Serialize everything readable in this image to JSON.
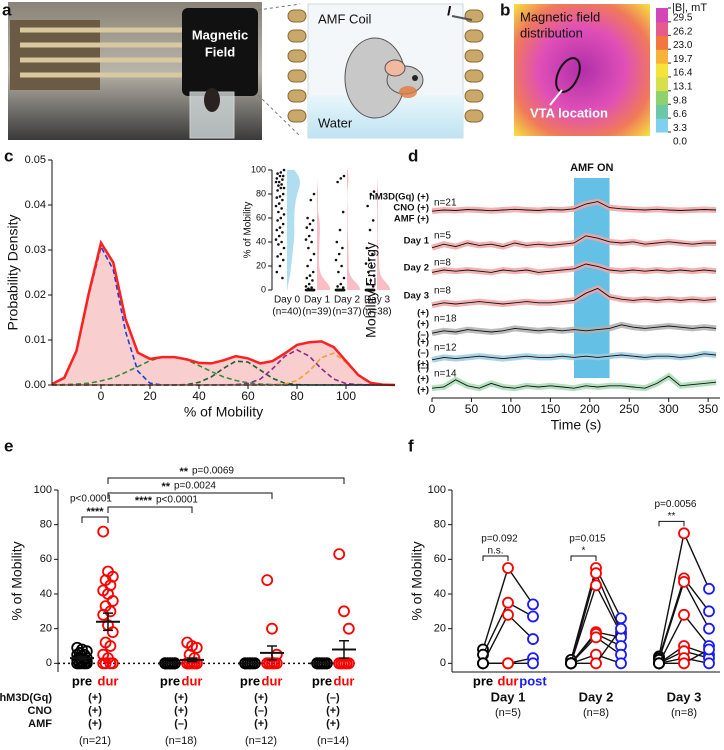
{
  "panel_a": {
    "letter": "a",
    "magnet_label": [
      "Magnetic",
      "Field"
    ],
    "coil_label": "AMF Coil",
    "current_label": "I",
    "water_label": "Water"
  },
  "panel_b": {
    "letter": "b",
    "title": [
      "Magnetic field",
      "distribution"
    ],
    "annotation": "VTA location",
    "colorbar_label": "|B|, mT",
    "clim": [
      0,
      29.5
    ],
    "colorbar_ticks": [
      {
        "value": 0,
        "label": "0.0"
      },
      3.3,
      6.6,
      9.8,
      13.1,
      16.4,
      19.7,
      {
        "value": 23,
        "label": "23.0"
      },
      26.2,
      29.5
    ],
    "colorbar_colors": [
      "#7fd0ec",
      "#6cc6a8",
      "#8fd16a",
      "#d6e04a",
      "#f6e23a",
      "#f7b23a",
      "#f3763e",
      "#e75a8c",
      "#d345b8"
    ]
  },
  "chart_data": [
    {
      "type": "density",
      "letter": "c",
      "xlabel": "% of Mobility",
      "ylabel": "Probability Density",
      "x": [
        -20,
        -15,
        -10,
        -5,
        0,
        5,
        10,
        15,
        20,
        25,
        30,
        35,
        40,
        45,
        50,
        55,
        60,
        65,
        70,
        75,
        80,
        85,
        90,
        95,
        100,
        105,
        110,
        115,
        120
      ],
      "xlim": [
        -20,
        120
      ],
      "xticks": [
        0,
        20,
        40,
        60,
        80,
        100
      ],
      "ylim": [
        0,
        0.05
      ],
      "yticks": [
        {
          "value": 0,
          "label": "0.00"
        },
        0.01,
        0.02,
        0.03,
        0.04,
        0.05
      ],
      "total": {
        "color": "#ff2020",
        "fill": "#f6c2c2",
        "values": [
          0.0002,
          0.0016,
          0.0076,
          0.0204,
          0.0316,
          0.0272,
          0.0147,
          0.0072,
          0.0058,
          0.0062,
          0.0062,
          0.0057,
          0.0049,
          0.0048,
          0.0055,
          0.0064,
          0.0059,
          0.0048,
          0.0053,
          0.007,
          0.0089,
          0.0095,
          0.0097,
          0.0084,
          0.0053,
          0.0022,
          0.0005,
          0.0001,
          0
        ]
      },
      "series": [
        {
          "color": "#1f3fd0",
          "values": [
            0.0002,
            0.0015,
            0.0074,
            0.02,
            0.0307,
            0.0256,
            0.0119,
            0.0031,
            0.0004,
            0,
            0,
            0,
            0,
            0,
            0,
            0,
            0,
            0,
            0,
            0,
            0,
            0,
            0,
            0,
            0,
            0,
            0,
            0,
            0
          ]
        },
        {
          "color": "#3a8a3a",
          "values": [
            0,
            0.0001,
            0.0002,
            0.0004,
            0.0009,
            0.0016,
            0.0028,
            0.0041,
            0.0054,
            0.0062,
            0.0062,
            0.0056,
            0.0043,
            0.003,
            0.0018,
            0.001,
            0.0005,
            0.0002,
            0.0001,
            0,
            0,
            0,
            0,
            0,
            0,
            0,
            0,
            0,
            0
          ]
        },
        {
          "color": "#1f5f2f",
          "values": [
            0,
            0,
            0,
            0,
            0,
            0,
            0,
            0,
            0,
            0,
            0,
            0.0001,
            0.0006,
            0.0018,
            0.0037,
            0.0053,
            0.0051,
            0.0033,
            0.0015,
            0.0004,
            0.0001,
            0,
            0,
            0,
            0,
            0,
            0,
            0,
            0
          ]
        },
        {
          "color": "#8b2a8b",
          "values": [
            0,
            0,
            0,
            0,
            0,
            0,
            0,
            0,
            0,
            0,
            0,
            0,
            0,
            0,
            0,
            0.0001,
            0.0003,
            0.0013,
            0.0036,
            0.0064,
            0.0078,
            0.0064,
            0.0036,
            0.0013,
            0.0003,
            0.0001,
            0,
            0,
            0
          ]
        },
        {
          "color": "#f0a030",
          "values": [
            0,
            0,
            0,
            0,
            0,
            0,
            0,
            0,
            0,
            0,
            0,
            0,
            0,
            0,
            0,
            0,
            0,
            0,
            0.0001,
            0.0002,
            0.001,
            0.0031,
            0.0061,
            0.0071,
            0.005,
            0.0021,
            0.0005,
            0.0001,
            0
          ]
        }
      ]
    },
    {
      "type": "strip",
      "ylabel": "% of Mobility",
      "categories": [
        "Day 0",
        "Day 1",
        "Day 2",
        "Day 3"
      ],
      "n_labels": [
        "(n=40)",
        "(n=39)",
        "(n=37)",
        "(n=38)"
      ],
      "colors": [
        "#a9d9ef",
        "#f7b6bf",
        "#f7b6bf",
        "#f7b6bf"
      ],
      "ylim": [
        0,
        100
      ],
      "yticks": [
        0,
        20,
        40,
        60,
        80,
        100
      ],
      "points": [
        [
          100,
          98,
          97,
          95,
          95,
          93,
          92,
          90,
          90,
          88,
          87,
          85,
          85,
          83,
          80,
          78,
          77,
          75,
          72,
          70,
          68,
          65,
          63,
          60,
          58,
          55,
          52,
          50,
          48,
          45,
          42,
          40,
          38,
          35,
          30,
          28,
          25,
          20,
          15,
          10
        ],
        [
          80,
          75,
          60,
          58,
          55,
          52,
          50,
          45,
          42,
          40,
          35,
          30,
          25,
          20,
          15,
          12,
          10,
          8,
          5,
          3,
          2,
          1,
          0,
          0,
          0,
          0,
          0,
          0,
          0,
          0,
          0,
          0,
          0,
          0,
          0,
          0,
          0,
          0,
          0
        ],
        [
          95,
          93,
          90,
          65,
          50,
          40,
          35,
          30,
          25,
          20,
          15,
          10,
          5,
          3,
          2,
          0,
          0,
          0,
          0,
          0,
          0,
          0,
          0,
          0,
          0,
          0,
          0,
          0,
          0,
          0,
          0,
          0,
          0,
          0,
          0,
          0,
          0
        ],
        [
          82,
          80,
          70,
          58,
          50,
          35,
          30,
          25,
          22,
          20,
          15,
          12,
          8,
          5,
          3,
          0,
          0,
          0,
          0,
          0,
          0,
          0,
          0,
          0,
          0,
          0,
          0,
          0,
          0,
          0,
          0,
          0,
          0,
          0,
          0,
          0,
          0,
          0
        ]
      ]
    },
    {
      "type": "traces",
      "letter": "d",
      "title": "AMF ON",
      "xlabel": "Time (s)",
      "ylabel": "Mobility Energy",
      "xlim": [
        0,
        365
      ],
      "xticks": [
        0,
        50,
        100,
        150,
        200,
        250,
        300,
        350
      ],
      "amf_on": [
        180,
        225
      ],
      "ylim": [
        0,
        1
      ],
      "x": [
        0,
        15,
        30,
        45,
        60,
        75,
        90,
        105,
        120,
        135,
        150,
        165,
        180,
        195,
        210,
        225,
        240,
        255,
        270,
        285,
        300,
        315,
        330,
        345,
        360
      ],
      "series": [
        {
          "labels": [
            "hM3D(Gq) (+)",
            "CNO (+)",
            "AMF (+)"
          ],
          "n_label": "n=21",
          "color": "#f2a5a5",
          "values": [
            0.45,
            0.5,
            0.48,
            0.52,
            0.5,
            0.47,
            0.5,
            0.53,
            0.5,
            0.48,
            0.52,
            0.5,
            0.55,
            0.75,
            0.85,
            0.6,
            0.55,
            0.52,
            0.5,
            0.53,
            0.5,
            0.48,
            0.5,
            0.52,
            0.5
          ]
        },
        {
          "labels": [
            "Day 1"
          ],
          "n_label": "n=5",
          "color": "#f2a5a5",
          "values": [
            0.3,
            0.45,
            0.35,
            0.5,
            0.4,
            0.45,
            0.35,
            0.5,
            0.4,
            0.45,
            0.4,
            0.45,
            0.5,
            0.8,
            0.7,
            0.55,
            0.5,
            0.55,
            0.45,
            0.5,
            0.55,
            0.5,
            0.45,
            0.5,
            0.5
          ]
        },
        {
          "labels": [
            "Day 2"
          ],
          "n_label": "n=8",
          "color": "#f2a5a5",
          "values": [
            0.4,
            0.5,
            0.45,
            0.5,
            0.45,
            0.4,
            0.5,
            0.45,
            0.5,
            0.4,
            0.45,
            0.5,
            0.55,
            0.75,
            0.65,
            0.5,
            0.45,
            0.5,
            0.45,
            0.5,
            0.45,
            0.5,
            0.45,
            0.5,
            0.45
          ]
        },
        {
          "labels": [
            "Day 3"
          ],
          "n_label": "n=8",
          "color": "#f2a5a5",
          "values": [
            0.2,
            0.3,
            0.25,
            0.3,
            0.35,
            0.3,
            0.25,
            0.3,
            0.35,
            0.3,
            0.3,
            0.35,
            0.4,
            0.7,
            0.9,
            0.55,
            0.45,
            0.4,
            0.45,
            0.4,
            0.45,
            0.4,
            0.45,
            0.4,
            0.45
          ]
        },
        {
          "labels": [
            "(+)",
            "(+)",
            "(–)"
          ],
          "n_label": "n=18",
          "color": "#b0b0b0",
          "values": [
            0.2,
            0.3,
            0.25,
            0.35,
            0.3,
            0.25,
            0.3,
            0.4,
            0.35,
            0.3,
            0.35,
            0.3,
            0.35,
            0.3,
            0.35,
            0.4,
            0.55,
            0.45,
            0.4,
            0.45,
            0.5,
            0.45,
            0.4,
            0.45,
            0.4
          ]
        },
        {
          "labels": [
            "(+)",
            "(–)",
            "(+)"
          ],
          "n_label": "n=12",
          "color": "#9ccbe0",
          "values": [
            0.3,
            0.4,
            0.35,
            0.4,
            0.45,
            0.4,
            0.35,
            0.4,
            0.45,
            0.4,
            0.4,
            0.45,
            0.4,
            0.45,
            0.4,
            0.45,
            0.5,
            0.45,
            0.4,
            0.45,
            0.45,
            0.4,
            0.45,
            0.55,
            0.5
          ]
        },
        {
          "labels": [
            "(–)",
            "(+)",
            "(+)"
          ],
          "n_label": "n=14",
          "color": "#a8dcb4",
          "values": [
            0.2,
            0.25,
            0.55,
            0.3,
            0.2,
            0.4,
            0.25,
            0.2,
            0.3,
            0.25,
            0.3,
            0.25,
            0.2,
            0.3,
            0.25,
            0.3,
            0.3,
            0.25,
            0.2,
            0.4,
            0.7,
            0.3,
            0.35,
            0.4,
            0.45
          ]
        }
      ]
    },
    {
      "type": "dot_bar",
      "letter": "e",
      "ylabel": "% of Mobility",
      "ylim": [
        -5,
        100
      ],
      "yticks": [
        0,
        20,
        40,
        60,
        80,
        100
      ],
      "condition_labels": [
        "pre",
        "dur"
      ],
      "condition_colors": [
        "#000000",
        "#ff0000"
      ],
      "row_labels": [
        "hM3D(Gq)",
        "CNO",
        "AMF"
      ],
      "groups": [
        {
          "factors": [
            "(+)",
            "(+)",
            "(+)"
          ],
          "n_label": "(n=21)",
          "means": [
            3,
            24
          ],
          "sems": [
            1,
            5
          ],
          "pre": [
            9,
            8,
            7,
            6,
            5,
            5,
            4,
            3,
            3,
            2,
            2,
            1,
            1,
            0,
            0,
            0,
            0,
            0,
            0,
            0,
            0
          ],
          "dur": [
            76,
            53,
            50,
            48,
            45,
            42,
            40,
            36,
            33,
            30,
            28,
            22,
            18,
            12,
            10,
            5,
            3,
            0,
            0,
            0,
            0
          ]
        },
        {
          "factors": [
            "(+)",
            "(+)",
            "(–)"
          ],
          "n_label": "(n=18)",
          "means": [
            0,
            2
          ],
          "sems": [
            0,
            1
          ],
          "pre": [
            0,
            0,
            0,
            0,
            0,
            0,
            0,
            0,
            0,
            0,
            0,
            0,
            0,
            0,
            0,
            0,
            0,
            0
          ],
          "dur": [
            12,
            10,
            9,
            5,
            3,
            0,
            0,
            0,
            0,
            0,
            0,
            0,
            0,
            0,
            0,
            0,
            0,
            0
          ]
        },
        {
          "factors": [
            "(+)",
            "(–)",
            "(+)"
          ],
          "n_label": "(n=12)",
          "means": [
            0,
            6
          ],
          "sems": [
            0,
            4
          ],
          "pre": [
            0,
            0,
            0,
            0,
            0,
            0,
            0,
            0,
            0,
            0,
            0,
            0
          ],
          "dur": [
            48,
            20,
            5,
            0,
            0,
            0,
            0,
            0,
            0,
            0,
            0,
            0
          ]
        },
        {
          "factors": [
            "(–)",
            "(+)",
            "(+)"
          ],
          "n_label": "(n=14)",
          "means": [
            0,
            8
          ],
          "sems": [
            0,
            5
          ],
          "pre": [
            0,
            0,
            0,
            0,
            0,
            0,
            0,
            0,
            0,
            0,
            0,
            0,
            0,
            0
          ],
          "dur": [
            63,
            30,
            20,
            0,
            0,
            0,
            0,
            0,
            0,
            0,
            0,
            0,
            0,
            0
          ]
        }
      ],
      "comparisons": [
        {
          "stars": "****",
          "label": "p<0.0001"
        },
        {
          "stars": "****",
          "label": "p<0.0001"
        },
        {
          "stars": "**",
          "label": "p=0.0024"
        },
        {
          "stars": "**",
          "label": "p=0.0069"
        }
      ]
    },
    {
      "type": "paired",
      "letter": "f",
      "ylabel": "% of Mobility",
      "ylim": [
        -5,
        100
      ],
      "yticks": [
        0,
        20,
        40,
        60,
        80,
        100
      ],
      "condition_labels": [
        "pre",
        "dur",
        "post"
      ],
      "condition_colors": [
        "#000000",
        "#ff0000",
        "#1a1aff"
      ],
      "groups": [
        {
          "label": "Day 1",
          "n_label": "(n=5)",
          "stars": "n.s.",
          "p_label": "p=0.092",
          "subjects": [
            [
              8,
              55,
              34
            ],
            [
              5,
              35,
              27
            ],
            [
              0,
              28,
              14
            ],
            [
              0,
              0,
              3
            ],
            [
              0,
              0,
              0
            ]
          ]
        },
        {
          "label": "Day 2",
          "n_label": "(n=8)",
          "stars": "*",
          "p_label": "p=0.015",
          "subjects": [
            [
              2,
              55,
              26
            ],
            [
              0,
              52,
              18
            ],
            [
              0,
              45,
              17
            ],
            [
              0,
              18,
              15
            ],
            [
              0,
              17,
              10
            ],
            [
              0,
              15,
              5
            ],
            [
              0,
              5,
              0
            ],
            [
              0,
              0,
              20
            ]
          ]
        },
        {
          "label": "Day 3",
          "n_label": "(n=8)",
          "stars": "**",
          "p_label": "p=0.0056",
          "subjects": [
            [
              4,
              75,
              43
            ],
            [
              3,
              49,
              30
            ],
            [
              2,
              47,
              20
            ],
            [
              0,
              28,
              10
            ],
            [
              0,
              10,
              5
            ],
            [
              0,
              7,
              3
            ],
            [
              0,
              3,
              0
            ],
            [
              0,
              0,
              8
            ]
          ]
        }
      ]
    }
  ]
}
